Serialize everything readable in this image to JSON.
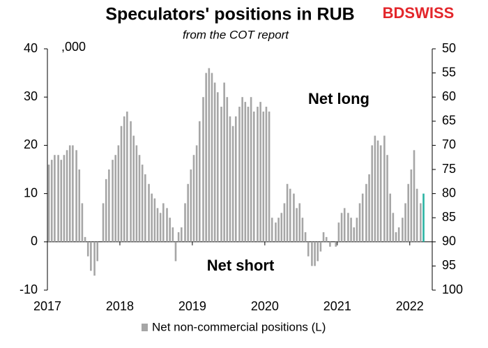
{
  "chart_data": {
    "type": "bar",
    "title": "Speculators' positions in RUB",
    "subtitle": "from the COT report",
    "brand": "BDSWISS",
    "unit_label": ",000",
    "annotations": [
      "Net long",
      "Net short"
    ],
    "x": [
      2017.02,
      2017.06,
      2017.1,
      2017.15,
      2017.19,
      2017.23,
      2017.27,
      2017.31,
      2017.35,
      2017.4,
      2017.44,
      2017.48,
      2017.52,
      2017.56,
      2017.6,
      2017.65,
      2017.69,
      2017.73,
      2017.77,
      2017.81,
      2017.85,
      2017.9,
      2017.94,
      2017.98,
      2018.02,
      2018.06,
      2018.1,
      2018.15,
      2018.19,
      2018.23,
      2018.27,
      2018.31,
      2018.35,
      2018.4,
      2018.44,
      2018.48,
      2018.52,
      2018.56,
      2018.6,
      2018.65,
      2018.69,
      2018.73,
      2018.77,
      2018.81,
      2018.85,
      2018.9,
      2018.94,
      2018.98,
      2019.02,
      2019.06,
      2019.1,
      2019.15,
      2019.19,
      2019.23,
      2019.27,
      2019.31,
      2019.35,
      2019.4,
      2019.44,
      2019.48,
      2019.52,
      2019.56,
      2019.6,
      2019.65,
      2019.69,
      2019.73,
      2019.77,
      2019.81,
      2019.85,
      2019.9,
      2019.94,
      2019.98,
      2020.02,
      2020.06,
      2020.1,
      2020.15,
      2020.19,
      2020.23,
      2020.27,
      2020.31,
      2020.35,
      2020.4,
      2020.44,
      2020.48,
      2020.52,
      2020.56,
      2020.6,
      2020.65,
      2020.69,
      2020.73,
      2020.77,
      2020.81,
      2020.85,
      2020.9,
      2020.94,
      2020.98,
      2021.02,
      2021.06,
      2021.1,
      2021.15,
      2021.19,
      2021.23,
      2021.27,
      2021.31,
      2021.35,
      2021.4,
      2021.44,
      2021.48,
      2021.52,
      2021.56,
      2021.6,
      2021.65,
      2021.69,
      2021.73,
      2021.77,
      2021.81,
      2021.85,
      2021.9,
      2021.94,
      2021.98,
      2022.02,
      2022.06,
      2022.1,
      2022.15,
      2022.19
    ],
    "series": [
      {
        "name": "Net non-commercial positions (L)",
        "color": "#a6a6a6",
        "last_color": "#2ab3a3",
        "values": [
          16,
          17,
          18,
          18,
          17,
          18,
          19,
          20,
          20,
          19,
          15,
          8,
          1,
          -3,
          -6,
          -7,
          -4,
          0,
          8,
          13,
          15,
          17,
          18,
          20,
          24,
          26,
          27,
          25,
          22,
          20,
          18,
          16,
          14,
          12,
          10,
          9,
          7,
          6,
          8,
          7,
          5,
          3,
          -4,
          2,
          3,
          8,
          12,
          15,
          18,
          20,
          25,
          30,
          35,
          36,
          35,
          33,
          31,
          28,
          33,
          30,
          26,
          24,
          26,
          28,
          30,
          29,
          28,
          30,
          27,
          28,
          29,
          27,
          28,
          27,
          5,
          4,
          5,
          6,
          8,
          12,
          11,
          10,
          7,
          8,
          5,
          2,
          -3,
          -5,
          -5,
          -4,
          -2,
          2,
          1,
          -1,
          0,
          -1,
          4,
          6,
          7,
          6,
          5,
          3,
          5,
          8,
          10,
          12,
          14,
          20,
          22,
          21,
          20,
          22,
          18,
          10,
          6,
          2,
          3,
          5,
          8,
          12,
          15,
          19,
          11,
          8,
          10
        ]
      }
    ],
    "xlim": [
      2017,
      2022.31
    ],
    "xticks": [
      2017,
      2018,
      2019,
      2020,
      2021,
      2022
    ],
    "ylim": [
      -10,
      40
    ],
    "yticks": [
      -10,
      0,
      10,
      20,
      30,
      40
    ],
    "y2lim": [
      50,
      100
    ],
    "y2ticks": [
      50,
      55,
      60,
      65,
      70,
      75,
      80,
      85,
      90,
      95,
      100
    ],
    "y2_inverted": true
  }
}
